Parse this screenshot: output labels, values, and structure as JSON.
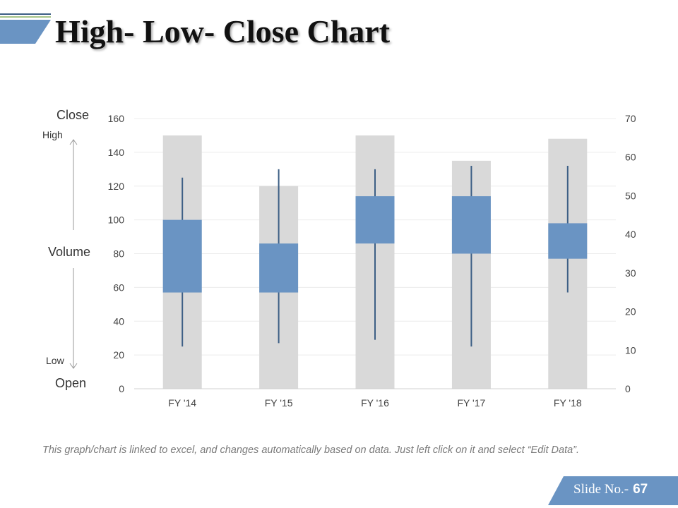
{
  "slide": {
    "title": "High- Low- Close Chart",
    "footnote": "This graph/chart is linked to excel, and changes automatically based on data. Just left click on it and select “Edit Data”.",
    "slide_label": "Slide No.-",
    "slide_number": "67"
  },
  "side_labels": {
    "close": "Close",
    "high": "High",
    "volume": "Volume",
    "low": "Low",
    "open": "Open"
  },
  "colors": {
    "accent": "#6a94c3",
    "accent_dark": "#3d5f85",
    "volume_bar": "#d9d9d9",
    "wick": "#3d5f85"
  },
  "chart_data": {
    "type": "bar",
    "categories": [
      "FY '14",
      "FY '15",
      "FY '16",
      "FY '17",
      "FY '18"
    ],
    "volume": [
      150,
      120,
      150,
      135,
      148
    ],
    "open": [
      57,
      57,
      86,
      80,
      77
    ],
    "close": [
      100,
      86,
      114,
      114,
      98
    ],
    "high": [
      125,
      130,
      130,
      132,
      132
    ],
    "low": [
      25,
      27,
      29,
      25,
      57
    ],
    "y_left": {
      "ylim": [
        0,
        160
      ],
      "ticks": [
        0,
        20,
        40,
        60,
        80,
        100,
        120,
        140,
        160
      ]
    },
    "y_right": {
      "ylim": [
        0,
        70
      ],
      "ticks": [
        0,
        10,
        20,
        30,
        40,
        50,
        60,
        70
      ]
    },
    "grid": true,
    "legend": "none"
  }
}
